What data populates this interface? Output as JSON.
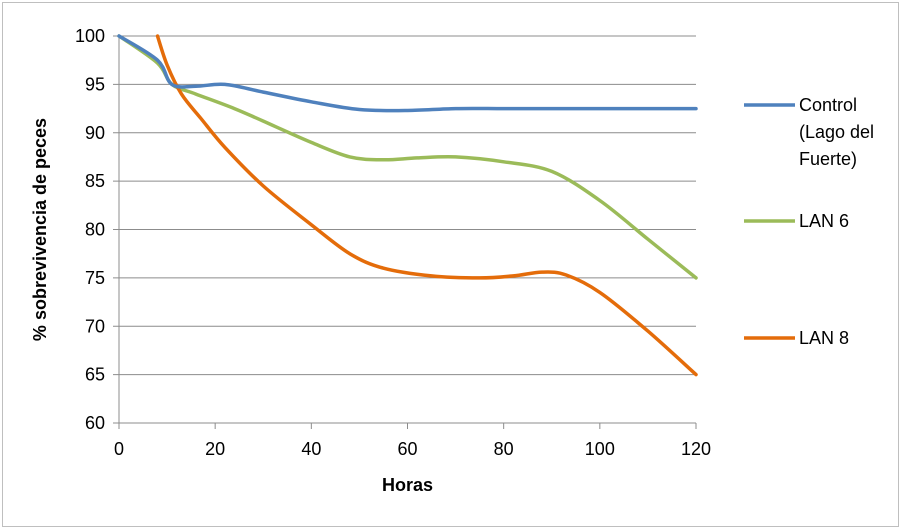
{
  "chart_data": {
    "type": "line",
    "title": "",
    "xlabel": "Horas",
    "ylabel": "% sobrevivencia de peces",
    "xlim": [
      0,
      120
    ],
    "ylim": [
      60,
      100
    ],
    "x_ticks": [
      0,
      20,
      40,
      60,
      80,
      100,
      120
    ],
    "y_ticks": [
      60,
      65,
      70,
      75,
      80,
      85,
      90,
      95,
      100
    ],
    "grid": "horizontal",
    "legend_position": "right",
    "series": [
      {
        "name": "Control (Lago del Fuerte)",
        "legend_lines": [
          "Control",
          "(Lago del",
          "Fuerte)"
        ],
        "color": "#4f81bd",
        "points": [
          [
            0,
            100
          ],
          [
            8,
            97.5
          ],
          [
            11,
            95
          ],
          [
            16,
            94.8
          ],
          [
            22,
            95
          ],
          [
            30,
            94.2
          ],
          [
            40,
            93.2
          ],
          [
            50,
            92.4
          ],
          [
            60,
            92.3
          ],
          [
            70,
            92.5
          ],
          [
            80,
            92.5
          ],
          [
            90,
            92.5
          ],
          [
            100,
            92.5
          ],
          [
            110,
            92.5
          ],
          [
            120,
            92.5
          ]
        ]
      },
      {
        "name": "LAN 6",
        "legend_lines": [
          "LAN 6"
        ],
        "color": "#9bbb59",
        "points": [
          [
            0,
            100
          ],
          [
            8,
            97.2
          ],
          [
            11,
            95
          ],
          [
            16,
            94
          ],
          [
            24,
            92.5
          ],
          [
            30,
            91.2
          ],
          [
            40,
            89
          ],
          [
            48,
            87.5
          ],
          [
            55,
            87.2
          ],
          [
            62,
            87.4
          ],
          [
            70,
            87.5
          ],
          [
            80,
            87
          ],
          [
            90,
            86
          ],
          [
            100,
            83
          ],
          [
            110,
            79
          ],
          [
            120,
            75
          ]
        ]
      },
      {
        "name": "LAN 8",
        "legend_lines": [
          "LAN 8"
        ],
        "color": "#e46c0a",
        "points": [
          [
            8,
            100
          ],
          [
            10,
            97
          ],
          [
            13,
            94
          ],
          [
            17,
            91.5
          ],
          [
            22,
            88.5
          ],
          [
            30,
            84.5
          ],
          [
            40,
            80.5
          ],
          [
            48,
            77.5
          ],
          [
            55,
            76
          ],
          [
            65,
            75.2
          ],
          [
            75,
            75
          ],
          [
            82,
            75.2
          ],
          [
            88,
            75.6
          ],
          [
            93,
            75.3
          ],
          [
            100,
            73.5
          ],
          [
            110,
            69.5
          ],
          [
            120,
            65
          ]
        ]
      }
    ]
  }
}
